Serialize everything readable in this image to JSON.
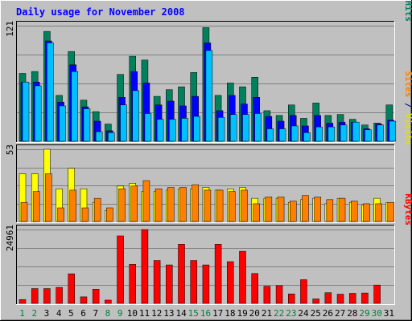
{
  "chart_data": {
    "type": "bar",
    "title": "Daily usage for November 2008",
    "x": [
      "1",
      "2",
      "3",
      "4",
      "5",
      "6",
      "7",
      "8",
      "9",
      "10",
      "11",
      "12",
      "13",
      "14",
      "15",
      "16",
      "17",
      "18",
      "19",
      "20",
      "21",
      "22",
      "23",
      "24",
      "25",
      "26",
      "27",
      "28",
      "29",
      "30",
      "31"
    ],
    "weekend_days": [
      "1",
      "2",
      "8",
      "9",
      "15",
      "16",
      "22",
      "23",
      "29",
      "30"
    ],
    "panels": [
      {
        "name": "top",
        "ymax_label": "121",
        "ymax": 121,
        "right_labels": [
          {
            "text": "Pages",
            "color": "#00a0ff"
          },
          {
            "text": " / ",
            "color": "#000080"
          },
          {
            "text": "Files",
            "color": "#0000c0"
          },
          {
            "text": " / ",
            "color": "#000080"
          },
          {
            "text": "Hits",
            "color": "#008060"
          }
        ],
        "series": [
          {
            "name": "Hits",
            "color": "#00805c",
            "values": [
              71,
              73,
              115,
              48,
              94,
              43,
              31,
              18,
              70,
              89,
              85,
              47,
              54,
              57,
              72,
              119,
              48,
              61,
              57,
              67,
              32,
              27,
              38,
              24,
              40,
              27,
              28,
              23,
              17,
              19,
              38
            ]
          },
          {
            "name": "Files",
            "color": "#0000ff",
            "values": [
              62,
              62,
              105,
              41,
              80,
              36,
              21,
              11,
              46,
              73,
              61,
              38,
              42,
              37,
              47,
              103,
              32,
              48,
              39,
              46,
              26,
              21,
              27,
              16,
              27,
              19,
              20,
              20,
              13,
              18,
              22
            ]
          },
          {
            "name": "Pages",
            "color": "#00c0ff",
            "values": [
              62,
              58,
              103,
              37,
              73,
              34,
              10,
              9,
              38,
              53,
              29,
              23,
              23,
              24,
              26,
              95,
              25,
              28,
              28,
              29,
              13,
              13,
              16,
              9,
              15,
              15,
              17,
              20,
              12,
              17,
              21
            ]
          }
        ]
      },
      {
        "name": "middle",
        "ymax_label": "53",
        "ymax": 53,
        "right_labels": [
          {
            "text": "Sites",
            "color": "#ff8000"
          },
          {
            "text": " / ",
            "color": "#000080"
          },
          {
            "text": "Visits",
            "color": "#e0e000"
          }
        ],
        "series": [
          {
            "name": "Visits",
            "color": "#ffff00",
            "values": [
              35,
              35,
              53,
              24,
              39,
              24,
              14,
              8,
              26,
              28,
              22,
              22,
              23,
              24,
              24,
              25,
              23,
              24,
              25,
              17,
              17,
              17,
              14,
              16,
              17,
              13,
              17,
              14,
              12,
              17,
              14
            ]
          },
          {
            "name": "Sites",
            "color": "#ff8000",
            "values": [
              14,
              22,
              35,
              10,
              23,
              10,
              17,
              10,
              24,
              26,
              30,
              24,
              25,
              25,
              27,
              23,
              23,
              22,
              23,
              13,
              18,
              18,
              15,
              19,
              18,
              16,
              17,
              15,
              13,
              13,
              14
            ]
          }
        ]
      },
      {
        "name": "bottom",
        "ymax_label": "24961",
        "ymax": 24961,
        "right_labels": [
          {
            "text": "KBytes",
            "color": "#ff0000"
          }
        ],
        "series": [
          {
            "name": "KBytes",
            "color": "#ff0000",
            "values": [
              1300,
              5000,
              5000,
              5400,
              10000,
              2200,
              4800,
              1100,
              22800,
              13200,
              24961,
              14500,
              13000,
              20000,
              14500,
              13000,
              20000,
              14100,
              17600,
              10100,
              5800,
              6000,
              3200,
              8000,
              1500,
              3600,
              3100,
              3400,
              3500,
              6200,
              0
            ]
          }
        ]
      }
    ]
  }
}
